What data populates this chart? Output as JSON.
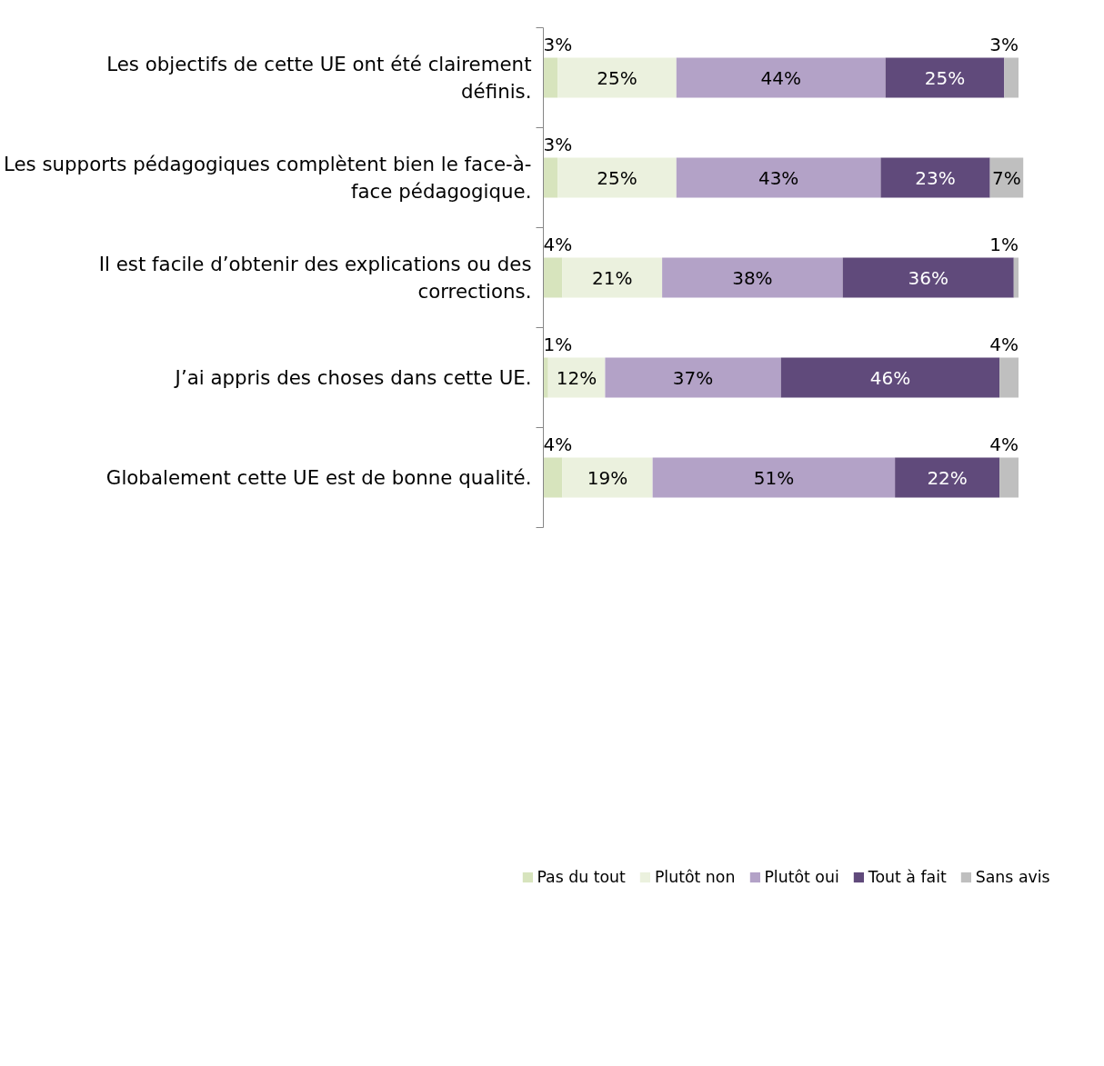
{
  "chart_data": {
    "type": "bar",
    "orientation": "horizontal",
    "stacked": true,
    "legend": "bottom",
    "grid": false,
    "tick_labels": "y",
    "categories": [
      "Les objectifs de cette UE ont été clairement définis.",
      "Les supports pédagogiques complètent bien le face-à-face pédagogique.",
      "Il est facile d’obtenir des explications ou des corrections.",
      "J’ai appris des choses dans cette UE.",
      "Globalement cette UE est de bonne qualité."
    ],
    "series": [
      {
        "name": "Pas du tout",
        "color": "#d7e4bd",
        "values": [
          3,
          3,
          4,
          1,
          4
        ],
        "value_labels": [
          "3%",
          "3%",
          "4%",
          "1%",
          "4%"
        ]
      },
      {
        "name": "Plutôt non",
        "color": "#ebf1de",
        "values": [
          25,
          25,
          21,
          12,
          19
        ],
        "value_labels": [
          "25%",
          "25%",
          "21%",
          "12%",
          "19%"
        ]
      },
      {
        "name": "Plutôt oui",
        "color": "#b3a2c7",
        "values": [
          44,
          43,
          38,
          37,
          51
        ],
        "value_labels": [
          "44%",
          "43%",
          "38%",
          "37%",
          "51%"
        ]
      },
      {
        "name": "Tout à fait",
        "color": "#604a7b",
        "values": [
          25,
          23,
          36,
          46,
          22
        ],
        "value_labels": [
          "25%",
          "23%",
          "36%",
          "46%",
          "22%"
        ]
      },
      {
        "name": "Sans avis",
        "color": "#bfbfbf",
        "values": [
          3,
          7,
          1,
          4,
          4
        ],
        "value_labels": [
          "3%",
          "7%",
          "1%",
          "4%",
          "4%"
        ]
      }
    ]
  }
}
